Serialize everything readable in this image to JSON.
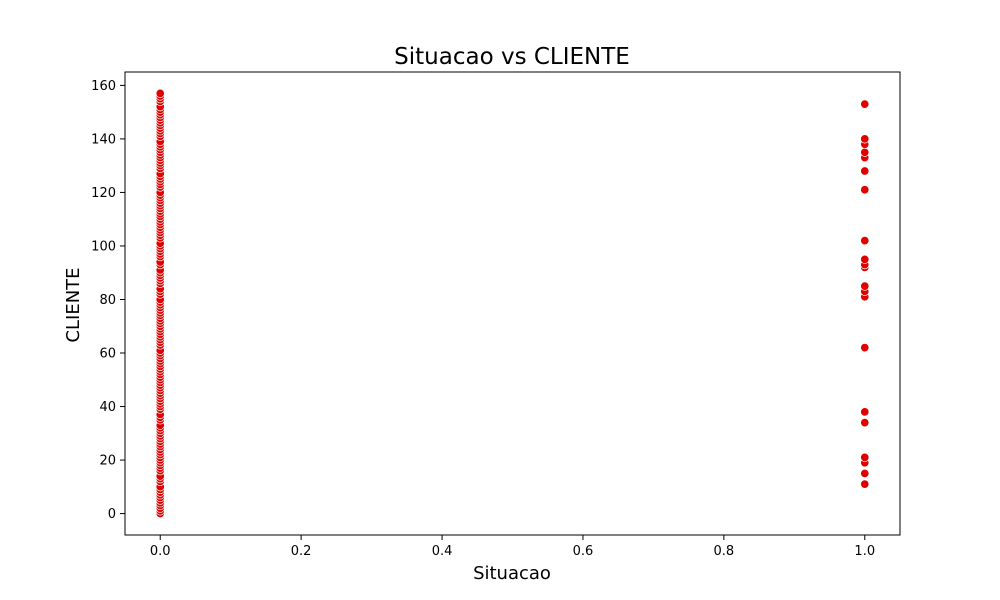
{
  "chart_data": {
    "type": "scatter",
    "title": "Situacao vs CLIENTE",
    "xlabel": "Situacao",
    "ylabel": "CLIENTE",
    "xlim": [
      -0.05,
      1.05
    ],
    "ylim": [
      -8,
      165
    ],
    "xticks": [
      0.0,
      0.2,
      0.4,
      0.6,
      0.8,
      1.0
    ],
    "xtick_labels": [
      "0.0",
      "0.2",
      "0.4",
      "0.6",
      "0.8",
      "1.0"
    ],
    "yticks": [
      0,
      20,
      40,
      60,
      80,
      100,
      120,
      140,
      160
    ],
    "ytick_labels": [
      "0",
      "20",
      "40",
      "60",
      "80",
      "100",
      "120",
      "140",
      "160"
    ],
    "grid": false,
    "marker_color": "#e00000",
    "marker_edge_color": "#ffffff",
    "series": [
      {
        "x_value": 0.0,
        "y_values": [
          0,
          1,
          2,
          3,
          4,
          5,
          6,
          7,
          8,
          9,
          10,
          12,
          13,
          14,
          16,
          17,
          18,
          19,
          20,
          21,
          22,
          23,
          24,
          25,
          26,
          27,
          28,
          29,
          30,
          31,
          32,
          33,
          35,
          36,
          37,
          39,
          40,
          41,
          42,
          43,
          44,
          45,
          46,
          47,
          48,
          49,
          50,
          51,
          52,
          53,
          54,
          55,
          56,
          57,
          58,
          59,
          60,
          61,
          63,
          64,
          65,
          66,
          67,
          68,
          69,
          70,
          71,
          72,
          73,
          74,
          75,
          76,
          77,
          78,
          79,
          80,
          82,
          83,
          84,
          86,
          87,
          88,
          89,
          90,
          91,
          93,
          94,
          96,
          97,
          98,
          99,
          100,
          101,
          103,
          104,
          105,
          106,
          107,
          108,
          109,
          110,
          111,
          112,
          113,
          114,
          115,
          116,
          117,
          118,
          119,
          120,
          122,
          123,
          124,
          125,
          126,
          127,
          129,
          130,
          131,
          132,
          133,
          134,
          135,
          136,
          137,
          138,
          139,
          141,
          142,
          143,
          144,
          145,
          146,
          147,
          148,
          149,
          150,
          151,
          152,
          154,
          155,
          156,
          157
        ]
      },
      {
        "x_value": 1.0,
        "y_values": [
          11,
          15,
          19,
          21,
          34,
          38,
          62,
          81,
          83,
          85,
          92,
          93,
          95,
          102,
          121,
          128,
          133,
          135,
          138,
          140,
          153
        ]
      }
    ]
  }
}
